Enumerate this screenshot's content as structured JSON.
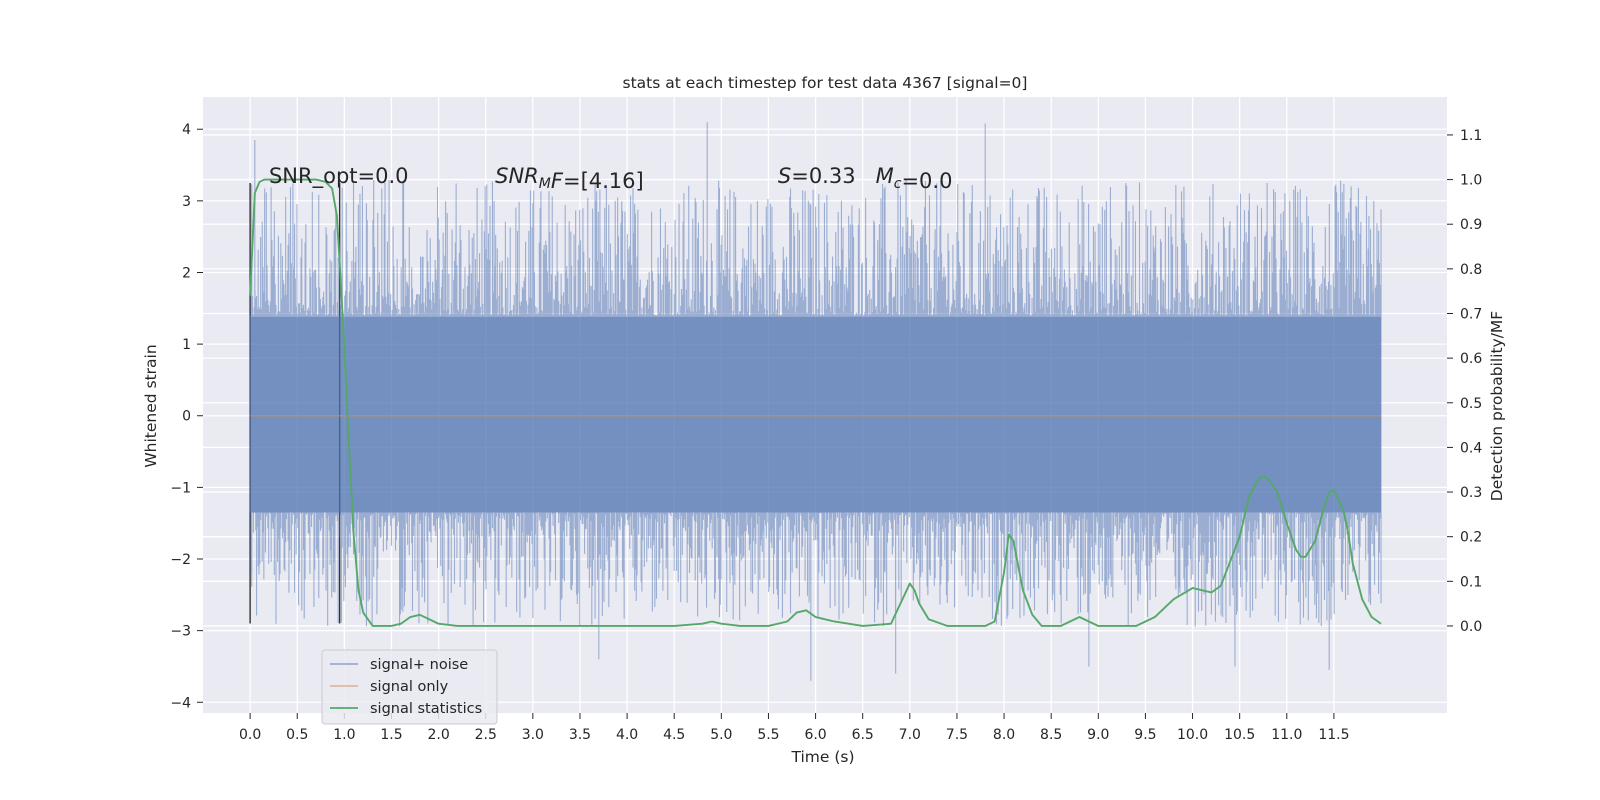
{
  "chart_data": {
    "type": "line",
    "title": "stats at each timestep for test data 4367 [signal=0]",
    "xlabel": "Time (s)",
    "ylabel": "Whitened strain",
    "y2label": "Detection probability/MF",
    "xlim": [
      -0.5,
      12.7
    ],
    "ylim": [
      -4.15,
      4.45
    ],
    "y2lim": [
      -0.195,
      1.185
    ],
    "x_ticks": [
      0.0,
      0.5,
      1.0,
      1.5,
      2.0,
      2.5,
      3.0,
      3.5,
      4.0,
      4.5,
      5.0,
      5.5,
      6.0,
      6.5,
      7.0,
      7.5,
      8.0,
      8.5,
      9.0,
      9.5,
      10.0,
      10.5,
      11.0,
      11.5
    ],
    "x_tick_labels": [
      "0.0",
      "0.5",
      "1.0",
      "1.5",
      "2.0",
      "2.5",
      "3.0",
      "3.5",
      "4.0",
      "4.5",
      "5.0",
      "5.5",
      "6.0",
      "6.5",
      "7.0",
      "7.5",
      "8.0",
      "8.5",
      "9.0",
      "9.5",
      "10.0",
      "10.5",
      "11.0",
      "11.5"
    ],
    "y_ticks": [
      -4,
      -3,
      -2,
      -1,
      0,
      1,
      2,
      3,
      4
    ],
    "y_tick_labels": [
      "−4",
      "−3",
      "−2",
      "−1",
      "0",
      "1",
      "2",
      "3",
      "4"
    ],
    "y2_ticks": [
      0.0,
      0.1,
      0.2,
      0.3,
      0.4,
      0.5,
      0.6,
      0.7,
      0.8,
      0.9,
      1.0,
      1.1
    ],
    "y2_tick_labels": [
      "0.0",
      "0.1",
      "0.2",
      "0.3",
      "0.4",
      "0.5",
      "0.6",
      "0.7",
      "0.8",
      "0.9",
      "1.0",
      "1.1"
    ],
    "grid": true,
    "background": "#EAEAF2",
    "legend_position": "lower-left",
    "annotations": [
      {
        "text": "SNR_opt=0.0",
        "x": 0.2,
        "y": 3.25
      },
      {
        "mathParts": [
          {
            "t": "SNR",
            "i": true
          },
          {
            "t": "M",
            "i": true,
            "sub": true
          },
          {
            "t": "F",
            "i": true
          },
          {
            "t": "=[4.16]",
            "i": false
          }
        ],
        "x": 2.6,
        "y": 3.25
      },
      {
        "mathParts": [
          {
            "t": "S",
            "i": true
          },
          {
            "t": "=0.33   ",
            "i": false
          },
          {
            "t": "M",
            "i": true
          },
          {
            "t": "c",
            "i": true,
            "sub": true
          },
          {
            "t": "=0.0",
            "i": false
          }
        ],
        "x": 5.6,
        "y": 3.25
      }
    ],
    "vlines": [
      {
        "x": 0.0,
        "y0": -2.9,
        "y1": 3.25
      },
      {
        "x": 0.95,
        "y0": -2.9,
        "y1": 3.25
      }
    ],
    "series": [
      {
        "name": "signal+ noise",
        "color": "#4C72B0",
        "opacity": 0.5,
        "axis": "left",
        "x_range": [
          0.0,
          12.0
        ],
        "core_range": [
          -1.35,
          1.38
        ],
        "envelope_min": [
          -2.9,
          2.8
        ],
        "notable_peaks": [
          {
            "x": 0.05,
            "y": 3.85
          },
          {
            "x": 4.85,
            "y": 4.1
          },
          {
            "x": 7.8,
            "y": 4.08
          },
          {
            "x": 5.95,
            "y": -3.7
          },
          {
            "x": 3.7,
            "y": -3.4
          },
          {
            "x": 11.45,
            "y": -3.55
          },
          {
            "x": 6.85,
            "y": -3.6
          },
          {
            "x": 8.9,
            "y": -3.5
          },
          {
            "x": 10.45,
            "y": -3.5
          }
        ]
      },
      {
        "name": "signal only",
        "color": "#DD8452",
        "axis": "left",
        "x": [
          0.0,
          12.0
        ],
        "y": [
          0.0,
          0.0
        ]
      },
      {
        "name": "signal statistics",
        "color": "#55A868",
        "axis": "right",
        "x": [
          0.0,
          0.05,
          0.1,
          0.15,
          0.2,
          0.3,
          0.5,
          0.7,
          0.8,
          0.87,
          0.92,
          0.96,
          1.0,
          1.05,
          1.1,
          1.15,
          1.2,
          1.3,
          1.5,
          1.6,
          1.7,
          1.8,
          1.9,
          2.0,
          2.2,
          2.5,
          3.0,
          3.5,
          4.0,
          4.5,
          4.8,
          4.9,
          5.0,
          5.2,
          5.5,
          5.7,
          5.8,
          5.9,
          6.0,
          6.2,
          6.5,
          6.8,
          6.9,
          7.0,
          7.05,
          7.1,
          7.2,
          7.4,
          7.6,
          7.8,
          7.9,
          8.0,
          8.05,
          8.1,
          8.2,
          8.3,
          8.4,
          8.6,
          8.7,
          8.8,
          8.9,
          9.0,
          9.2,
          9.4,
          9.6,
          9.8,
          10.0,
          10.2,
          10.3,
          10.5,
          10.6,
          10.7,
          10.75,
          10.8,
          10.9,
          11.0,
          11.1,
          11.15,
          11.2,
          11.3,
          11.4,
          11.45,
          11.5,
          11.6,
          11.65,
          11.7,
          11.8,
          11.9,
          12.0
        ],
        "y": [
          0.74,
          0.97,
          0.995,
          1.0,
          1.0,
          1.0,
          1.0,
          1.0,
          0.995,
          0.98,
          0.92,
          0.78,
          0.62,
          0.4,
          0.2,
          0.08,
          0.03,
          0.0,
          0.0,
          0.005,
          0.02,
          0.025,
          0.015,
          0.005,
          0.0,
          0.0,
          0.0,
          0.0,
          0.0,
          0.0,
          0.005,
          0.01,
          0.005,
          0.0,
          0.0,
          0.01,
          0.03,
          0.035,
          0.02,
          0.01,
          0.0,
          0.005,
          0.05,
          0.095,
          0.08,
          0.05,
          0.015,
          0.0,
          0.0,
          0.0,
          0.01,
          0.12,
          0.205,
          0.19,
          0.08,
          0.025,
          0.0,
          0.0,
          0.01,
          0.02,
          0.01,
          0.0,
          0.0,
          0.0,
          0.02,
          0.06,
          0.085,
          0.075,
          0.09,
          0.2,
          0.29,
          0.33,
          0.335,
          0.33,
          0.3,
          0.23,
          0.17,
          0.155,
          0.155,
          0.19,
          0.27,
          0.3,
          0.305,
          0.26,
          0.21,
          0.14,
          0.06,
          0.02,
          0.005
        ]
      }
    ]
  }
}
